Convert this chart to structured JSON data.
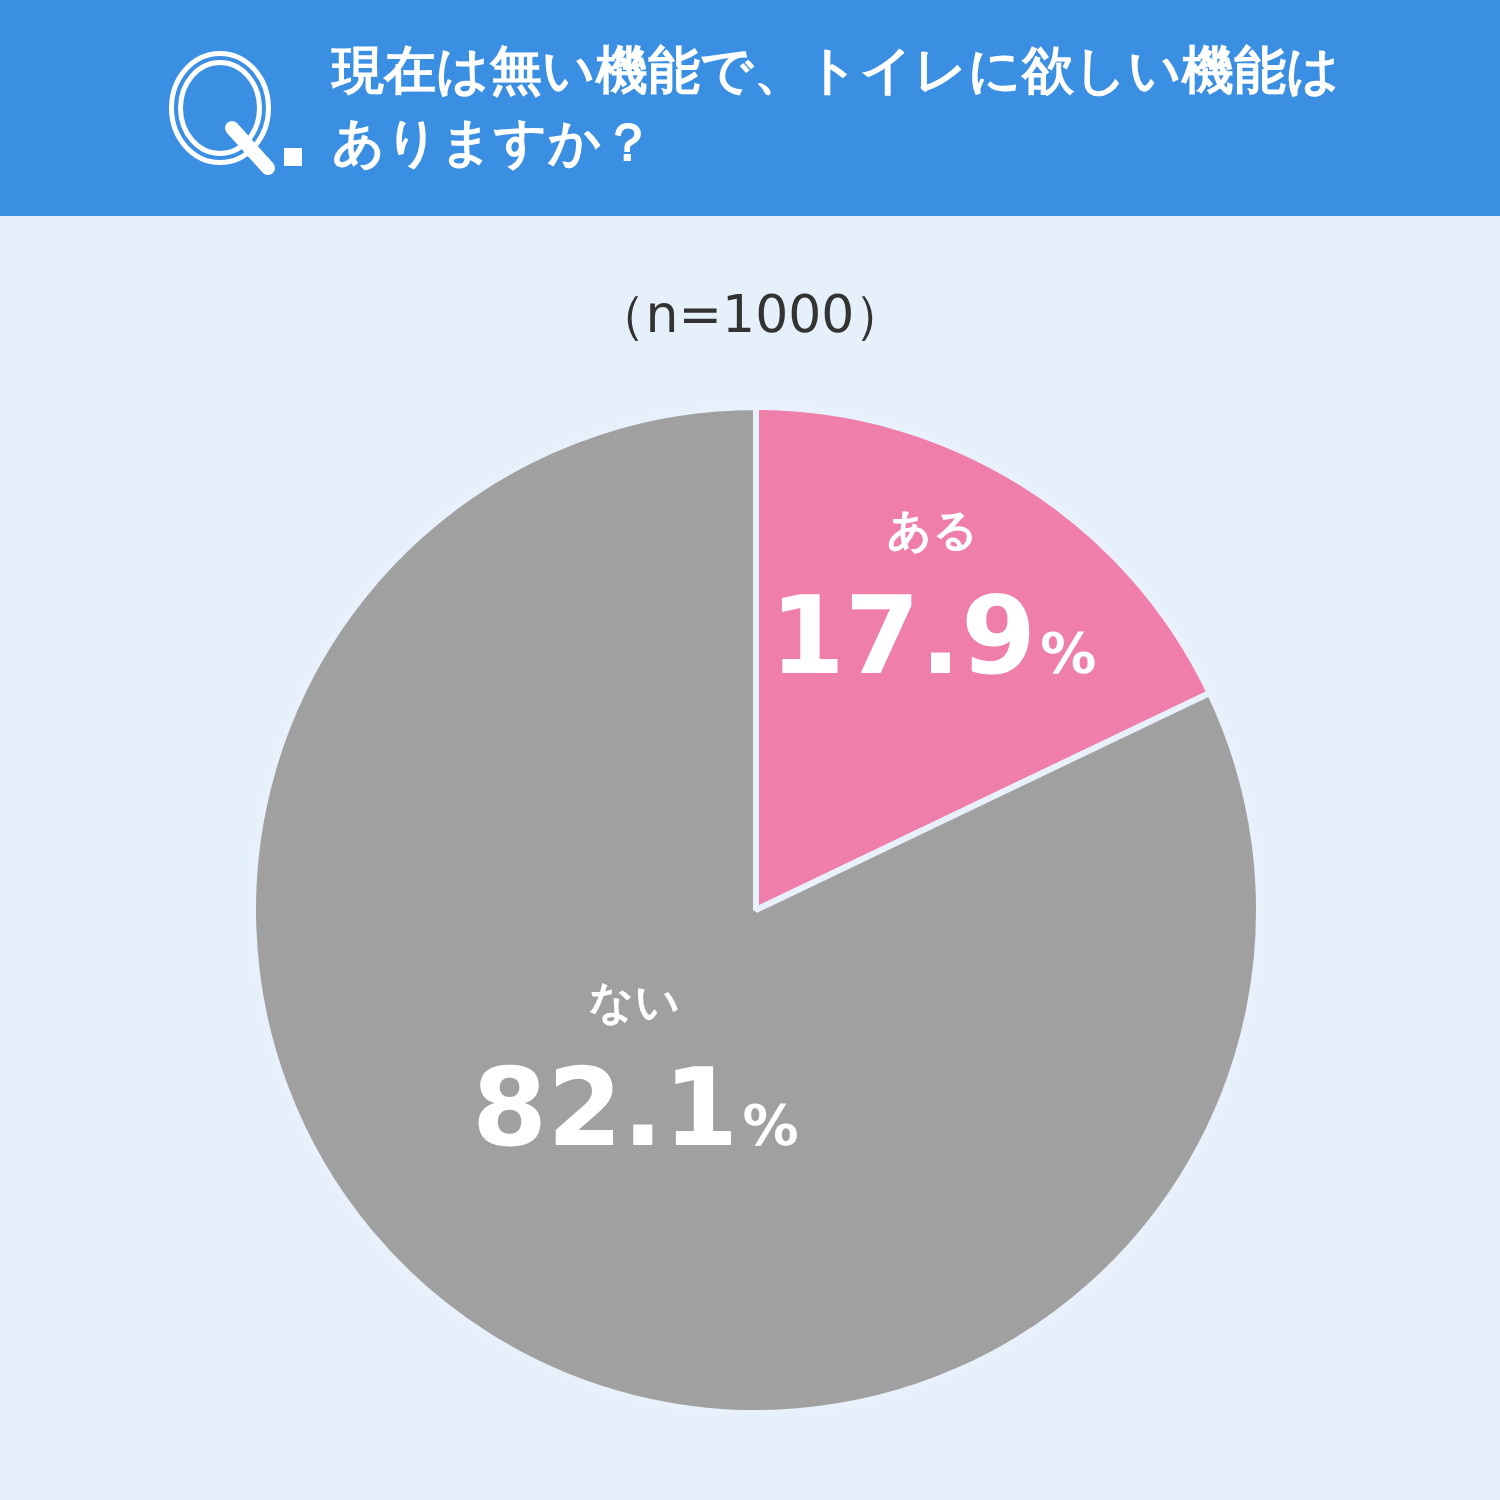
{
  "chart_data": {
    "type": "pie",
    "title": "現在は無い機能で、トイレに欲しい機能はありますか？",
    "subtitle": "（n=1000）",
    "categories": [
      "ある",
      "ない"
    ],
    "values": [
      17.9,
      82.1
    ],
    "colors": [
      "#ef7eab",
      "#a0a0a0"
    ],
    "value_labels": [
      "17.9%",
      "82.1%"
    ],
    "legend": false
  }
}
